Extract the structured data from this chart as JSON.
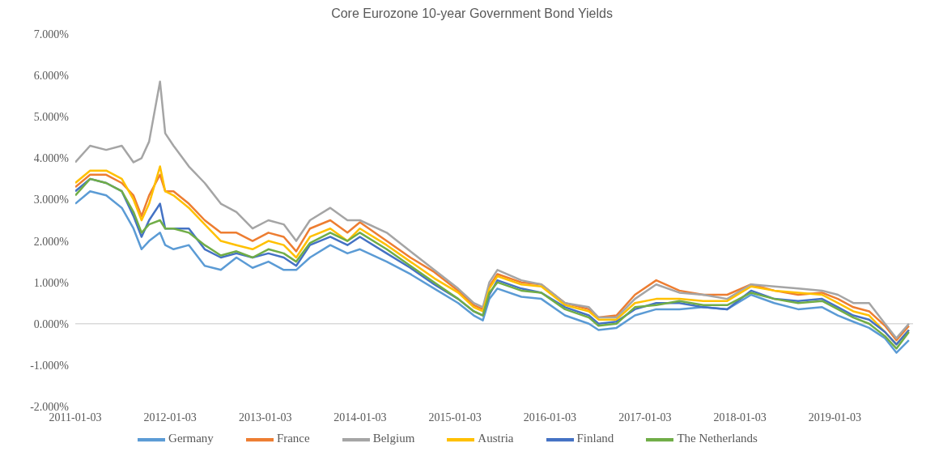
{
  "chart_data": {
    "type": "line",
    "title": "Core Eurozone 10-year Government Bond Yields",
    "x": [
      "2011-01-03",
      "2011-03-01",
      "2011-05-02",
      "2011-07-01",
      "2011-08-15",
      "2011-09-15",
      "2011-10-14",
      "2011-11-25",
      "2011-12-15",
      "2012-01-16",
      "2012-03-15",
      "2012-05-15",
      "2012-07-16",
      "2012-09-14",
      "2012-11-15",
      "2013-01-15",
      "2013-03-15",
      "2013-05-02",
      "2013-06-24",
      "2013-09-10",
      "2013-11-15",
      "2014-01-02",
      "2014-04-15",
      "2014-07-15",
      "2014-10-15",
      "2015-01-15",
      "2015-03-16",
      "2015-04-20",
      "2015-05-15",
      "2015-06-15",
      "2015-09-15",
      "2015-12-01",
      "2016-03-01",
      "2016-06-01",
      "2016-07-08",
      "2016-09-15",
      "2016-11-25",
      "2017-02-15",
      "2017-05-15",
      "2017-08-15",
      "2017-11-15",
      "2018-02-15",
      "2018-05-15",
      "2018-08-15",
      "2018-11-15",
      "2019-01-15",
      "2019-03-15",
      "2019-05-15",
      "2019-07-15",
      "2019-08-28",
      "2019-10-15"
    ],
    "series": [
      {
        "name": "Germany",
        "color": "#5b9bd5",
        "values": [
          2.9,
          3.2,
          3.1,
          2.8,
          2.3,
          1.8,
          2.0,
          2.2,
          1.9,
          1.8,
          1.9,
          1.4,
          1.3,
          1.6,
          1.35,
          1.5,
          1.3,
          1.3,
          1.6,
          1.9,
          1.7,
          1.8,
          1.5,
          1.2,
          0.85,
          0.5,
          0.2,
          0.08,
          0.6,
          0.85,
          0.65,
          0.6,
          0.2,
          0.0,
          -0.15,
          -0.1,
          0.2,
          0.35,
          0.35,
          0.4,
          0.35,
          0.7,
          0.5,
          0.35,
          0.4,
          0.2,
          0.05,
          -0.1,
          -0.35,
          -0.7,
          -0.4
        ]
      },
      {
        "name": "France",
        "color": "#ed7d31",
        "values": [
          3.3,
          3.6,
          3.6,
          3.4,
          3.1,
          2.6,
          3.1,
          3.6,
          3.2,
          3.2,
          2.9,
          2.5,
          2.2,
          2.2,
          2.0,
          2.2,
          2.1,
          1.75,
          2.3,
          2.5,
          2.2,
          2.45,
          2.0,
          1.6,
          1.25,
          0.8,
          0.45,
          0.35,
          0.9,
          1.2,
          1.0,
          0.95,
          0.5,
          0.35,
          0.15,
          0.2,
          0.7,
          1.05,
          0.8,
          0.7,
          0.7,
          0.95,
          0.8,
          0.7,
          0.75,
          0.6,
          0.4,
          0.3,
          -0.05,
          -0.4,
          -0.05
        ]
      },
      {
        "name": "Belgium",
        "color": "#a5a5a5",
        "values": [
          3.9,
          4.3,
          4.2,
          4.3,
          3.9,
          4.0,
          4.4,
          5.85,
          4.6,
          4.3,
          3.8,
          3.4,
          2.9,
          2.7,
          2.3,
          2.5,
          2.4,
          2.0,
          2.5,
          2.8,
          2.5,
          2.5,
          2.2,
          1.75,
          1.3,
          0.85,
          0.5,
          0.4,
          1.0,
          1.3,
          1.05,
          0.95,
          0.5,
          0.4,
          0.15,
          0.15,
          0.6,
          0.95,
          0.75,
          0.7,
          0.6,
          0.95,
          0.9,
          0.85,
          0.8,
          0.7,
          0.5,
          0.5,
          0.0,
          -0.35,
          0.0
        ]
      },
      {
        "name": "Austria",
        "color": "#ffc000",
        "values": [
          3.4,
          3.7,
          3.7,
          3.5,
          3.0,
          2.5,
          2.9,
          3.8,
          3.2,
          3.1,
          2.8,
          2.4,
          2.0,
          1.9,
          1.8,
          2.0,
          1.9,
          1.6,
          2.1,
          2.3,
          2.0,
          2.3,
          1.9,
          1.5,
          1.1,
          0.75,
          0.4,
          0.3,
          0.85,
          1.15,
          0.95,
          0.9,
          0.45,
          0.3,
          0.1,
          0.1,
          0.5,
          0.6,
          0.6,
          0.55,
          0.55,
          0.9,
          0.8,
          0.75,
          0.7,
          0.5,
          0.3,
          0.2,
          -0.2,
          -0.5,
          -0.15
        ]
      },
      {
        "name": "Finland",
        "color": "#4472c4",
        "values": [
          3.2,
          3.5,
          3.4,
          3.2,
          2.6,
          2.1,
          2.5,
          2.9,
          2.3,
          2.3,
          2.3,
          1.8,
          1.6,
          1.7,
          1.6,
          1.7,
          1.6,
          1.4,
          1.9,
          2.1,
          1.9,
          2.1,
          1.7,
          1.35,
          0.95,
          0.6,
          0.3,
          0.2,
          0.7,
          1.05,
          0.85,
          0.75,
          0.4,
          0.2,
          0.0,
          0.05,
          0.35,
          0.5,
          0.5,
          0.4,
          0.35,
          0.8,
          0.6,
          0.55,
          0.6,
          0.4,
          0.2,
          0.1,
          -0.2,
          -0.5,
          -0.15
        ]
      },
      {
        "name": "The Netherlands",
        "color": "#70ad47",
        "values": [
          3.1,
          3.5,
          3.4,
          3.2,
          2.7,
          2.2,
          2.4,
          2.5,
          2.3,
          2.3,
          2.2,
          1.9,
          1.65,
          1.75,
          1.6,
          1.8,
          1.7,
          1.5,
          1.95,
          2.2,
          2.0,
          2.2,
          1.8,
          1.4,
          1.0,
          0.6,
          0.3,
          0.2,
          0.75,
          1.0,
          0.8,
          0.75,
          0.35,
          0.15,
          -0.05,
          0.0,
          0.4,
          0.45,
          0.55,
          0.45,
          0.45,
          0.75,
          0.6,
          0.5,
          0.55,
          0.35,
          0.15,
          0.0,
          -0.3,
          -0.6,
          -0.2
        ]
      }
    ],
    "xlim": [
      "2011-01-03",
      "2019-10-31"
    ],
    "xticks": [
      "2011-01-03",
      "2012-01-03",
      "2013-01-03",
      "2014-01-03",
      "2015-01-03",
      "2016-01-03",
      "2017-01-03",
      "2018-01-03",
      "2019-01-03"
    ],
    "ylim": [
      -2,
      7
    ],
    "yticks": [
      {
        "value": -2,
        "label": "-2.000%"
      },
      {
        "value": -1,
        "label": "-1.000%"
      },
      {
        "value": 0,
        "label": "0.000%"
      },
      {
        "value": 1,
        "label": "1.000%"
      },
      {
        "value": 2,
        "label": "2.000%"
      },
      {
        "value": 3,
        "label": "3.000%"
      },
      {
        "value": 4,
        "label": "4.000%"
      },
      {
        "value": 5,
        "label": "5.000%"
      },
      {
        "value": 6,
        "label": "6.000%"
      },
      {
        "value": 7,
        "label": "7.000%"
      }
    ],
    "ref_lines": [
      {
        "axis": "y",
        "value": 0,
        "color": "#d9d9d9"
      }
    ],
    "grid": false,
    "legend": "bottom"
  }
}
